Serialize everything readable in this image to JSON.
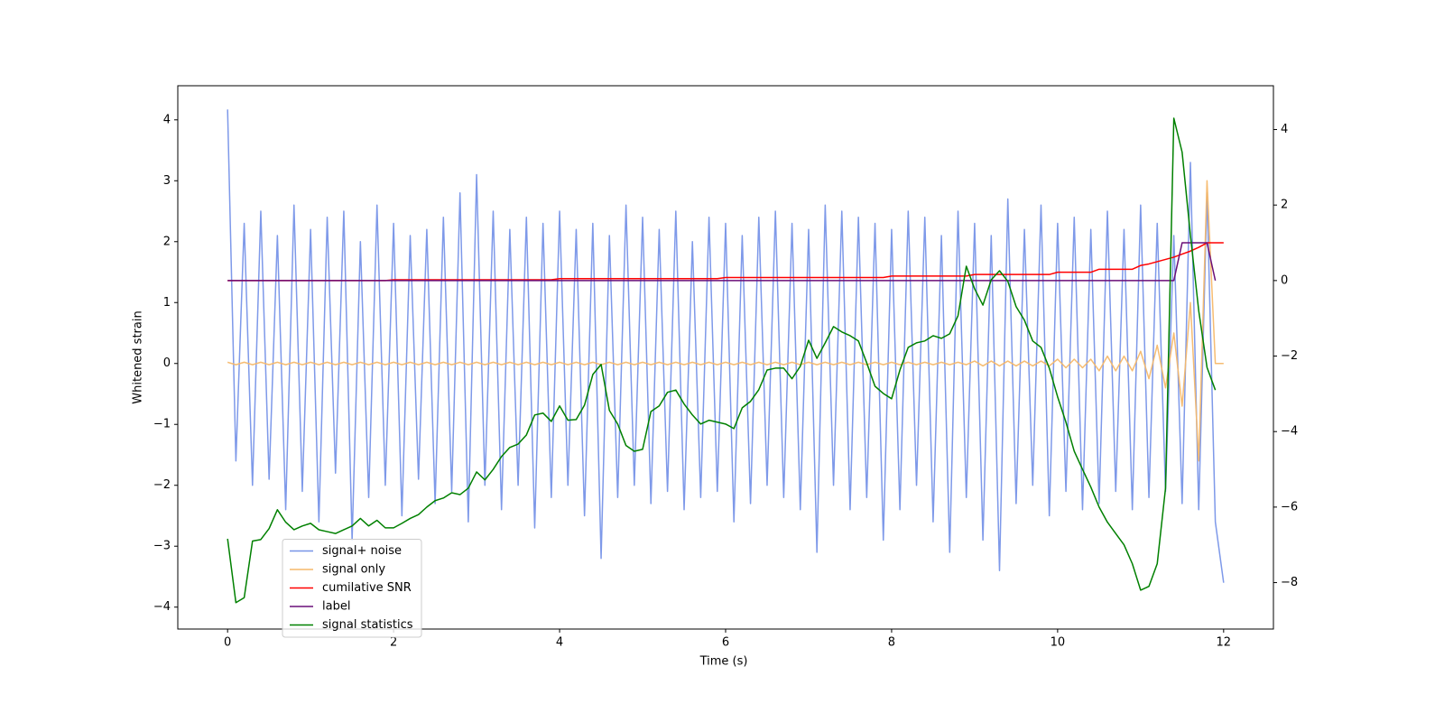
{
  "chart_data": {
    "type": "line",
    "xlabel": "Time (s)",
    "ylabel": "Whitened strain",
    "xlim": [
      -0.6,
      12.6
    ],
    "ylim": [
      -4.36,
      4.56
    ],
    "y2lim": [
      -9.23,
      5.16
    ],
    "xticks": [
      0,
      2,
      4,
      6,
      8,
      10,
      12
    ],
    "yticks": [
      {
        "value": -4,
        "label": "−4"
      },
      {
        "value": -3,
        "label": "−3"
      },
      {
        "value": -2,
        "label": "−2"
      },
      {
        "value": -1,
        "label": "−1"
      },
      0,
      1,
      2,
      3,
      4
    ],
    "y2ticks": [
      {
        "value": -8,
        "label": "−8"
      },
      {
        "value": -6,
        "label": "−6"
      },
      {
        "value": -4,
        "label": "−4"
      },
      {
        "value": -2,
        "label": "−2"
      },
      0,
      2,
      4
    ],
    "legend": "lower left",
    "x": [
      0,
      0.1,
      0.2,
      0.3,
      0.4,
      0.5,
      0.6,
      0.7,
      0.8,
      0.9,
      1,
      1.1,
      1.2,
      1.3,
      1.4,
      1.5,
      1.6,
      1.7,
      1.8,
      1.9,
      2,
      2.1,
      2.2,
      2.3,
      2.4,
      2.5,
      2.6,
      2.7,
      2.8,
      2.9,
      3,
      3.1,
      3.2,
      3.3,
      3.4,
      3.5,
      3.6,
      3.7,
      3.8,
      3.9,
      4,
      4.1,
      4.2,
      4.3,
      4.4,
      4.5,
      4.6,
      4.7,
      4.8,
      4.9,
      5,
      5.1,
      5.2,
      5.3,
      5.4,
      5.5,
      5.6,
      5.7,
      5.8,
      5.9,
      6,
      6.1,
      6.2,
      6.3,
      6.4,
      6.5,
      6.6,
      6.7,
      6.8,
      6.9,
      7,
      7.1,
      7.2,
      7.3,
      7.4,
      7.5,
      7.6,
      7.7,
      7.8,
      7.9,
      8,
      8.1,
      8.2,
      8.3,
      8.4,
      8.5,
      8.6,
      8.7,
      8.8,
      8.9,
      9,
      9.1,
      9.2,
      9.3,
      9.4,
      9.5,
      9.6,
      9.7,
      9.8,
      9.9,
      10,
      10.1,
      10.2,
      10.3,
      10.4,
      10.5,
      10.6,
      10.7,
      10.8,
      10.9,
      11,
      11.1,
      11.2,
      11.3,
      11.4,
      11.5,
      11.6,
      11.7,
      11.8,
      11.9,
      12
    ],
    "series": [
      {
        "name": "signal+ noise",
        "color": "#7793e8",
        "axis": "y",
        "values": [
          4.17,
          -1.6,
          2.3,
          -2.0,
          2.5,
          -1.9,
          2.1,
          -2.4,
          2.6,
          -2.1,
          2.2,
          -2.6,
          2.4,
          -1.8,
          2.5,
          -2.9,
          2.0,
          -2.2,
          2.6,
          -2.0,
          2.3,
          -2.5,
          2.1,
          -1.9,
          2.2,
          -2.3,
          2.4,
          -2.1,
          2.8,
          -2.6,
          3.1,
          -2.0,
          2.5,
          -2.4,
          2.2,
          -2.0,
          2.4,
          -2.7,
          2.3,
          -2.2,
          2.5,
          -2.0,
          2.2,
          -2.5,
          2.3,
          -3.2,
          2.1,
          -2.2,
          2.6,
          -2.0,
          2.4,
          -2.3,
          2.2,
          -2.1,
          2.5,
          -2.4,
          2.0,
          -2.2,
          2.4,
          -2.1,
          2.3,
          -2.6,
          2.1,
          -2.3,
          2.4,
          -2.0,
          2.5,
          -2.2,
          2.3,
          -2.4,
          2.2,
          -3.1,
          2.6,
          -2.0,
          2.5,
          -2.4,
          2.4,
          -2.2,
          2.3,
          -2.9,
          2.2,
          -2.4,
          2.5,
          -2.0,
          2.4,
          -2.6,
          2.1,
          -3.1,
          2.5,
          -2.2,
          2.3,
          -2.9,
          2.1,
          -3.4,
          2.7,
          -2.3,
          2.2,
          -2.0,
          2.6,
          -2.5,
          2.3,
          -2.1,
          2.4,
          -2.4,
          2.2,
          -2.3,
          2.5,
          -2.1,
          2.2,
          -2.4,
          2.6,
          -2.2,
          2.3,
          -2.1,
          2.1,
          -2.3,
          3.3,
          -2.4,
          2.8,
          -2.6,
          -3.6
        ]
      },
      {
        "name": "signal only",
        "color": "#f5b86a",
        "axis": "y",
        "values": [
          0.02,
          -0.02,
          0.02,
          -0.02,
          0.02,
          -0.02,
          0.02,
          -0.02,
          0.02,
          -0.02,
          0.02,
          -0.02,
          0.02,
          -0.02,
          0.02,
          -0.02,
          0.02,
          -0.02,
          0.02,
          -0.02,
          0.02,
          -0.02,
          0.02,
          -0.02,
          0.02,
          -0.02,
          0.02,
          -0.02,
          0.02,
          -0.02,
          0.02,
          -0.02,
          0.02,
          -0.02,
          0.02,
          -0.02,
          0.02,
          -0.02,
          0.02,
          -0.02,
          0.02,
          -0.02,
          0.02,
          -0.02,
          0.02,
          -0.02,
          0.02,
          -0.02,
          0.02,
          -0.02,
          0.02,
          -0.02,
          0.02,
          -0.02,
          0.02,
          -0.02,
          0.02,
          -0.02,
          0.02,
          -0.02,
          0.02,
          -0.02,
          0.02,
          -0.02,
          0.02,
          -0.02,
          0.02,
          -0.02,
          0.02,
          -0.02,
          0.02,
          -0.02,
          0.02,
          -0.02,
          0.02,
          -0.02,
          0.02,
          -0.02,
          0.02,
          -0.02,
          0.02,
          -0.02,
          0.02,
          -0.02,
          0.02,
          -0.02,
          0.02,
          -0.02,
          0.02,
          -0.02,
          0.04,
          -0.04,
          0.04,
          -0.04,
          0.04,
          -0.04,
          0.04,
          -0.04,
          0.04,
          -0.04,
          0.07,
          -0.07,
          0.07,
          -0.07,
          0.07,
          -0.12,
          0.12,
          -0.12,
          0.12,
          -0.12,
          0.2,
          -0.25,
          0.3,
          -0.4,
          0.5,
          -0.7,
          1.0,
          -1.6,
          3.0,
          0,
          0
        ]
      },
      {
        "name": "cumilative SNR",
        "color": "#ff0000",
        "axis": "y2",
        "values": [
          0,
          0,
          0,
          0,
          0,
          0,
          0,
          0,
          0,
          0,
          0,
          0,
          0,
          0,
          0,
          0,
          0,
          0,
          0,
          0,
          0.02,
          0.02,
          0.02,
          0.02,
          0.02,
          0.02,
          0.02,
          0.02,
          0.02,
          0.02,
          0.02,
          0.02,
          0.02,
          0.02,
          0.02,
          0.02,
          0.02,
          0.02,
          0.02,
          0.02,
          0.05,
          0.05,
          0.05,
          0.05,
          0.05,
          0.05,
          0.05,
          0.05,
          0.05,
          0.05,
          0.05,
          0.05,
          0.05,
          0.05,
          0.05,
          0.05,
          0.05,
          0.05,
          0.05,
          0.05,
          0.08,
          0.08,
          0.08,
          0.08,
          0.08,
          0.08,
          0.08,
          0.08,
          0.08,
          0.08,
          0.08,
          0.08,
          0.08,
          0.08,
          0.08,
          0.08,
          0.08,
          0.08,
          0.08,
          0.08,
          0.12,
          0.12,
          0.12,
          0.12,
          0.12,
          0.12,
          0.12,
          0.12,
          0.12,
          0.12,
          0.16,
          0.16,
          0.16,
          0.16,
          0.16,
          0.16,
          0.16,
          0.16,
          0.16,
          0.16,
          0.22,
          0.22,
          0.22,
          0.22,
          0.22,
          0.3,
          0.3,
          0.3,
          0.3,
          0.3,
          0.4,
          0.44,
          0.5,
          0.56,
          0.62,
          0.7,
          0.78,
          0.88,
          1.0,
          1.0,
          1.0
        ]
      },
      {
        "name": "label",
        "color": "#6a0f78",
        "axis": "y2",
        "values": [
          0,
          0,
          0,
          0,
          0,
          0,
          0,
          0,
          0,
          0,
          0,
          0,
          0,
          0,
          0,
          0,
          0,
          0,
          0,
          0,
          0,
          0,
          0,
          0,
          0,
          0,
          0,
          0,
          0,
          0,
          0,
          0,
          0,
          0,
          0,
          0,
          0,
          0,
          0,
          0,
          0,
          0,
          0,
          0,
          0,
          0,
          0,
          0,
          0,
          0,
          0,
          0,
          0,
          0,
          0,
          0,
          0,
          0,
          0,
          0,
          0,
          0,
          0,
          0,
          0,
          0,
          0,
          0,
          0,
          0,
          0,
          0,
          0,
          0,
          0,
          0,
          0,
          0,
          0,
          0,
          0,
          0,
          0,
          0,
          0,
          0,
          0,
          0,
          0,
          0,
          0,
          0,
          0,
          0,
          0,
          0,
          0,
          0,
          0,
          0,
          0,
          0,
          0,
          0,
          0,
          0,
          0,
          0,
          0,
          0,
          0,
          0,
          0,
          0,
          0,
          1,
          1,
          1,
          1,
          0,
          null
        ]
      },
      {
        "name": "signal statistics",
        "color": "#008000",
        "axis": "y2",
        "values": [
          -6.84,
          -8.53,
          -8.4,
          -6.9,
          -6.86,
          -6.57,
          -6.07,
          -6.4,
          -6.6,
          -6.5,
          -6.43,
          -6.6,
          -6.65,
          -6.7,
          -6.6,
          -6.5,
          -6.3,
          -6.5,
          -6.35,
          -6.55,
          -6.55,
          -6.43,
          -6.3,
          -6.2,
          -6.0,
          -5.83,
          -5.76,
          -5.62,
          -5.67,
          -5.5,
          -5.07,
          -5.28,
          -5.0,
          -4.66,
          -4.42,
          -4.33,
          -4.09,
          -3.56,
          -3.51,
          -3.73,
          -3.32,
          -3.7,
          -3.68,
          -3.3,
          -2.49,
          -2.22,
          -3.44,
          -3.8,
          -4.37,
          -4.52,
          -4.47,
          -3.47,
          -3.32,
          -2.96,
          -2.9,
          -3.27,
          -3.56,
          -3.8,
          -3.7,
          -3.75,
          -3.8,
          -3.92,
          -3.37,
          -3.2,
          -2.89,
          -2.37,
          -2.32,
          -2.32,
          -2.6,
          -2.27,
          -1.58,
          -2.06,
          -1.65,
          -1.22,
          -1.36,
          -1.46,
          -1.6,
          -2.18,
          -2.8,
          -2.99,
          -3.13,
          -2.37,
          -1.77,
          -1.65,
          -1.6,
          -1.46,
          -1.53,
          -1.41,
          -0.93,
          0.38,
          -0.22,
          -0.65,
          0.02,
          0.26,
          -0.02,
          -0.69,
          -1.05,
          -1.6,
          -1.77,
          -2.32,
          -3.08,
          -3.75,
          -4.52,
          -5.0,
          -5.47,
          -6.0,
          -6.4,
          -6.7,
          -7.0,
          -7.5,
          -8.2,
          -8.1,
          -7.5,
          -5.5,
          4.3,
          3.4,
          1.2,
          -0.8,
          -2.3,
          -2.9,
          null
        ]
      }
    ]
  }
}
